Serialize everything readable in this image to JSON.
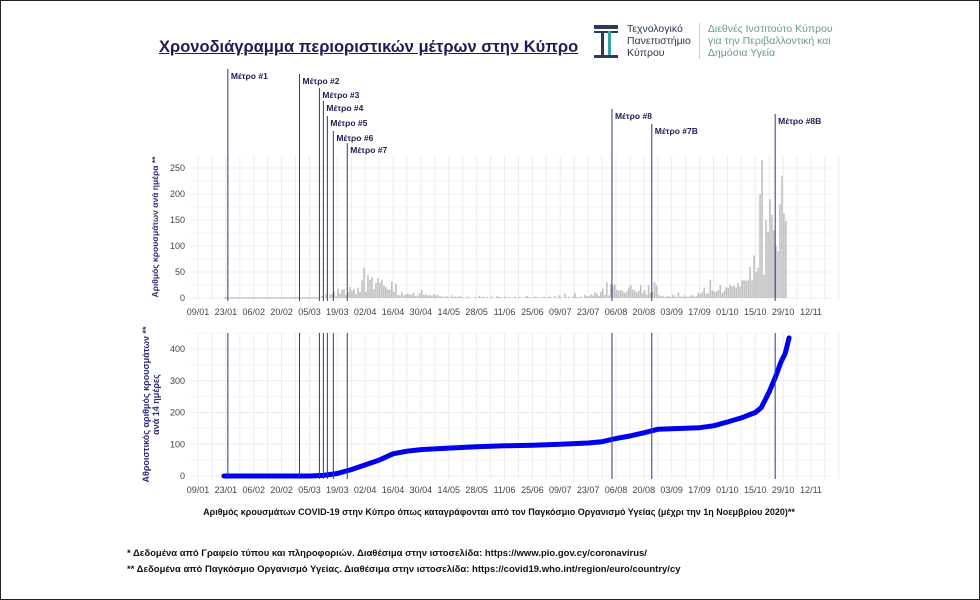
{
  "title": "Χρονοδιάγραμμα περιοριστικών μέτρων στην Κύπρο",
  "logo": {
    "left": [
      "Τεχνολογικό",
      "Πανεπιστήμιο",
      "Κύπρου"
    ],
    "right": [
      "Διεθνές Ινστιτούτο Κύπρου",
      "για την Περιβαλλοντική και",
      "Δημόσια Υγεία"
    ]
  },
  "colors": {
    "bars": "#c0c0c0",
    "line": "#0000ee",
    "measures": "#2a3a7a",
    "axis_title": "#2e2a7a"
  },
  "measures": [
    {
      "label": "Μέτρο #1",
      "date": "24/01"
    },
    {
      "label": "Μέτρο #2",
      "date": "29/02"
    },
    {
      "label": "Μέτρο #3",
      "date": "10/03"
    },
    {
      "label": "Μέτρο #4",
      "date": "12/03"
    },
    {
      "label": "Μέτρο #5",
      "date": "14/03"
    },
    {
      "label": "Μέτρο #6",
      "date": "17/03"
    },
    {
      "label": "Μέτρο #7",
      "date": "24/03"
    },
    {
      "label": "Μέτρο #8",
      "date": "04/08"
    },
    {
      "label": "Μέτρο #7B",
      "date": "24/08"
    },
    {
      "label": "Μέτρο #8B",
      "date": "25/10"
    }
  ],
  "chart_data": [
    {
      "type": "bar",
      "ylabel": "Αριθμός κρουσμάτων ανά ημέρα **",
      "ylim": [
        0,
        275
      ],
      "yticks": [
        0,
        50,
        100,
        150,
        200,
        250
      ],
      "xticks": [
        "09/01",
        "23/01",
        "06/02",
        "20/02",
        "05/03",
        "19/03",
        "02/04",
        "16/04",
        "30/04",
        "14/05",
        "28/05",
        "11/06",
        "25/06",
        "09/07",
        "23/07",
        "06/08",
        "20/08",
        "03/09",
        "17/09",
        "01/10",
        "15/10",
        "29/10",
        "12/11"
      ],
      "grid": true,
      "start_date": "09/03",
      "values": [
        2,
        0,
        4,
        1,
        8,
        0,
        6,
        8,
        12,
        3,
        18,
        9,
        16,
        17,
        6,
        11,
        21,
        14,
        17,
        8,
        20,
        12,
        34,
        58,
        12,
        44,
        35,
        40,
        17,
        29,
        38,
        29,
        35,
        24,
        21,
        16,
        16,
        31,
        12,
        28,
        6,
        5,
        11,
        5,
        7,
        8,
        7,
        6,
        10,
        4,
        5,
        9,
        15,
        6,
        7,
        5,
        6,
        4,
        7,
        5,
        6,
        3,
        4,
        2,
        3,
        3,
        1,
        5,
        2,
        3,
        2,
        4,
        2,
        1,
        0,
        3,
        1,
        1,
        0,
        2,
        1,
        4,
        1,
        3,
        1,
        2,
        0,
        3,
        1,
        0,
        4,
        2,
        2,
        0,
        3,
        1,
        2,
        0,
        1,
        3,
        0,
        2,
        1,
        0,
        2,
        4,
        2,
        1,
        1,
        3,
        2,
        0,
        1,
        2,
        2,
        1,
        3,
        2,
        0,
        4,
        1,
        5,
        2,
        0,
        8,
        1,
        3,
        0,
        3,
        10,
        2,
        1,
        3,
        0,
        6,
        4,
        3,
        7,
        5,
        11,
        9,
        4,
        12,
        18,
        6,
        30,
        5,
        27,
        24,
        26,
        16,
        14,
        15,
        13,
        10,
        12,
        20,
        25,
        16,
        15,
        11,
        14,
        25,
        9,
        15,
        6,
        25,
        10,
        12,
        30,
        24,
        6,
        3,
        4,
        2,
        3,
        4,
        2,
        6,
        5,
        2,
        10,
        3,
        2,
        5,
        3,
        2,
        4,
        6,
        3,
        4,
        10,
        8,
        12,
        20,
        8,
        9,
        35,
        14,
        12,
        12,
        15,
        25,
        10,
        14,
        20,
        19,
        26,
        22,
        24,
        20,
        29,
        22,
        34,
        34,
        33,
        35,
        60,
        34,
        82,
        51,
        58,
        200,
        265,
        45,
        150,
        127,
        190,
        160,
        130,
        100,
        90,
        180,
        235,
        163,
        148
      ]
    },
    {
      "type": "line",
      "ylabel": "Αθροιστικός αριθμός κρουσμάτων ανά 14 ημέρες **",
      "ylim": [
        0,
        450
      ],
      "yticks": [
        0,
        100,
        200,
        300,
        400
      ],
      "xticks": [
        "09/01",
        "23/01",
        "06/02",
        "20/02",
        "05/03",
        "19/03",
        "02/04",
        "16/04",
        "30/04",
        "14/05",
        "28/05",
        "11/06",
        "25/06",
        "09/07",
        "23/07",
        "06/08",
        "20/08",
        "03/09",
        "17/09",
        "01/10",
        "15/10",
        "29/10",
        "12/11"
      ],
      "grid": true,
      "xlabel": "Αριθμός κρουσμάτων COVID-19 στην Κύπρο όπως καταγράφονται από τον Παγκόσμιο Οργανισμό Υγείας (μέχρι την 1η Νοεμβρίου 2020)**",
      "points": [
        [
          "22/01",
          0
        ],
        [
          "05/03",
          0
        ],
        [
          "12/03",
          2
        ],
        [
          "19/03",
          8
        ],
        [
          "26/03",
          20
        ],
        [
          "02/04",
          35
        ],
        [
          "09/04",
          50
        ],
        [
          "16/04",
          70
        ],
        [
          "23/04",
          78
        ],
        [
          "30/04",
          83
        ],
        [
          "14/05",
          88
        ],
        [
          "28/05",
          92
        ],
        [
          "11/06",
          95
        ],
        [
          "25/06",
          97
        ],
        [
          "09/07",
          100
        ],
        [
          "23/07",
          104
        ],
        [
          "30/07",
          108
        ],
        [
          "06/08",
          118
        ],
        [
          "13/08",
          126
        ],
        [
          "20/08",
          136
        ],
        [
          "27/08",
          147
        ],
        [
          "03/09",
          149
        ],
        [
          "17/09",
          152
        ],
        [
          "24/09",
          158
        ],
        [
          "01/10",
          170
        ],
        [
          "08/10",
          183
        ],
        [
          "15/10",
          200
        ],
        [
          "18/10",
          215
        ],
        [
          "22/10",
          265
        ],
        [
          "25/10",
          310
        ],
        [
          "28/10",
          360
        ],
        [
          "30/10",
          385
        ],
        [
          "01/11",
          435
        ]
      ]
    }
  ],
  "notes": [
    "* Δεδομένα από Γραφείο τύπου και πληροφοριών. Διαθέσιμα στην ιστοσελίδα: https://www.pio.gov.cy/coronavirus/",
    "** Δεδομένα από Παγκόσμιο Οργανισμό Υγείας. Διαθέσιμα στην ιστοσελίδα: https://covid19.who.int/region/euro/country/cy"
  ]
}
